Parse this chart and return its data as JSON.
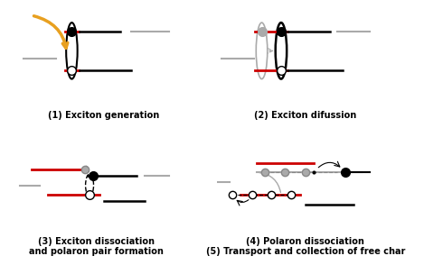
{
  "background_color": "#ffffff",
  "text_color": "#000000",
  "labels": {
    "p1": "(1) Exciton generation",
    "p2": "(2) Exciton difussion",
    "p3": "(3) Exciton dissociation\nand polaron pair formation",
    "p4": "(4) Polaron dissociation\n(5) Transport and collection of free char"
  },
  "label_fontsize": 7.0,
  "red_color": "#cc0000",
  "black_color": "#000000",
  "gray_color": "#888888",
  "light_gray": "#aaaaaa",
  "yellow_color": "#e8a020"
}
